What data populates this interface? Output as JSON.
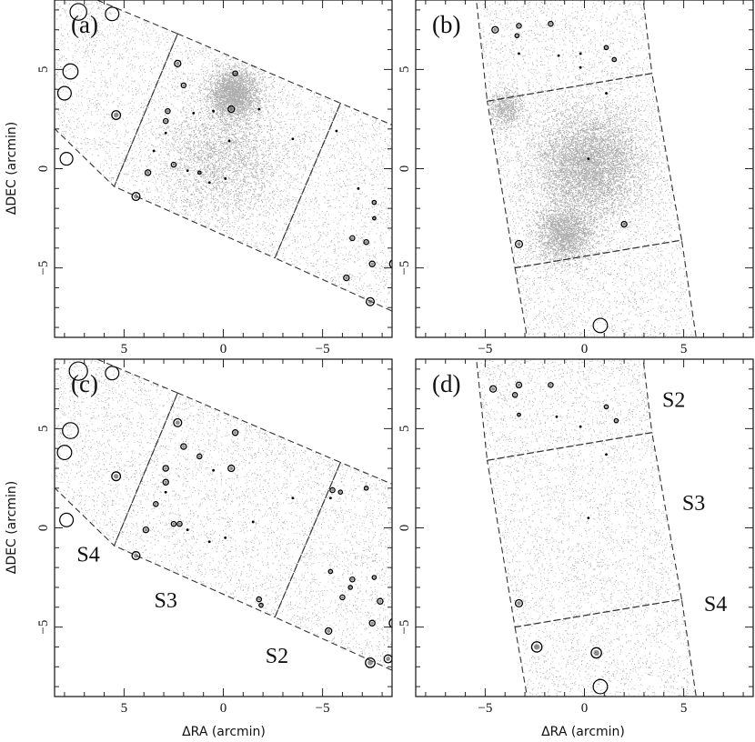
{
  "figure": {
    "x_axis_label": "ΔRA (arcmin)",
    "y_axis_label": "ΔDEC (arcmin)"
  },
  "chart_data": [
    {
      "type": "scatter",
      "panel_label": "(a)",
      "xlabel": "",
      "ylabel": "ΔDEC (arcmin)",
      "xlim": [
        8.5,
        -8.5
      ],
      "ylim": [
        -8.5,
        8.5
      ],
      "x_ticks": [
        -5,
        0,
        5
      ],
      "y_ticks": [
        -5,
        0,
        5
      ],
      "fields": [
        {
          "corners": [
            [
              -5.9,
              3.3
            ],
            [
              -2.6,
              -4.5
            ],
            [
              -9.0,
              -7.4
            ],
            [
              -9.0,
              2.0
            ]
          ]
        },
        {
          "corners": [
            [
              2.3,
              6.8
            ],
            [
              5.5,
              -0.9
            ],
            [
              -2.6,
              -4.5
            ],
            [
              -5.9,
              3.3
            ]
          ]
        },
        {
          "corners": [
            [
              8.5,
              9.4
            ],
            [
              9.0,
              2.5
            ],
            [
              5.5,
              -0.9
            ],
            [
              2.3,
              6.8
            ]
          ]
        }
      ],
      "diffuse_regions": [
        {
          "center": [
            -0.5,
            3.8
          ],
          "radius": 1.4,
          "peak_density": 1.0
        },
        {
          "center": [
            0.0,
            0.5
          ],
          "radius": 3.6,
          "peak_density": 0.35
        }
      ],
      "sources": [
        {
          "x": 7.3,
          "y": 7.9,
          "r": 0.42
        },
        {
          "x": 5.6,
          "y": 7.8,
          "r": 0.34
        },
        {
          "x": 7.7,
          "y": 4.9,
          "r": 0.38
        },
        {
          "x": 8.0,
          "y": 3.8,
          "r": 0.34
        },
        {
          "x": 7.9,
          "y": 0.5,
          "r": 0.32
        },
        {
          "x": 5.4,
          "y": 2.7,
          "r": 0.22
        },
        {
          "x": 4.4,
          "y": -1.4,
          "r": 0.2
        },
        {
          "x": 2.3,
          "y": 5.3,
          "r": 0.16
        },
        {
          "x": 2.0,
          "y": 4.2,
          "r": 0.12
        },
        {
          "x": 2.8,
          "y": 2.9,
          "r": 0.12
        },
        {
          "x": 2.9,
          "y": 2.4,
          "r": 0.12
        },
        {
          "x": 2.5,
          "y": 0.2,
          "r": 0.12
        },
        {
          "x": 3.8,
          "y": -0.2,
          "r": 0.14
        },
        {
          "x": -0.6,
          "y": 4.8,
          "r": 0.12
        },
        {
          "x": -0.4,
          "y": 3.0,
          "r": 0.16
        },
        {
          "x": 1.2,
          "y": -0.2,
          "r": 0.08
        },
        {
          "x": -7.4,
          "y": -6.7,
          "r": 0.2
        },
        {
          "x": -8.6,
          "y": -4.8,
          "r": 0.22
        },
        {
          "x": -6.2,
          "y": -5.5,
          "r": 0.14
        },
        {
          "x": -7.5,
          "y": -4.8,
          "r": 0.14
        },
        {
          "x": -7.2,
          "y": -3.7,
          "r": 0.12
        },
        {
          "x": -6.5,
          "y": -3.5,
          "r": 0.12
        },
        {
          "x": -7.6,
          "y": -1.7,
          "r": 0.1
        },
        {
          "x": -7.6,
          "y": -2.5,
          "r": 0.08
        },
        {
          "x": 0.5,
          "y": 2.9,
          "r": 0.06
        },
        {
          "x": 0.7,
          "y": -0.7,
          "r": 0.06
        },
        {
          "x": -3.5,
          "y": 1.5,
          "r": 0.06
        },
        {
          "x": -0.3,
          "y": 1.4,
          "r": 0.06
        },
        {
          "x": -1.8,
          "y": 3.0,
          "r": 0.06
        },
        {
          "x": 2.9,
          "y": 1.8,
          "r": 0.06
        },
        {
          "x": 1.5,
          "y": 2.8,
          "r": 0.06
        },
        {
          "x": -0.1,
          "y": -0.5,
          "r": 0.06
        },
        {
          "x": 3.5,
          "y": 0.9,
          "r": 0.06
        },
        {
          "x": 1.8,
          "y": -0.1,
          "r": 0.06
        },
        {
          "x": -5.7,
          "y": 1.9,
          "r": 0.06
        },
        {
          "x": -6.8,
          "y": -1.0,
          "r": 0.06
        }
      ],
      "region_labels": []
    },
    {
      "type": "scatter",
      "panel_label": "(b)",
      "xlabel": "",
      "ylabel": "",
      "xlim": [
        -8.5,
        8.5
      ],
      "ylim": [
        -8.5,
        8.5
      ],
      "x_ticks": [
        -5,
        0,
        5
      ],
      "y_ticks": [
        -5,
        0,
        5
      ],
      "fields": [
        {
          "corners": [
            [
              -5.5,
              9.0
            ],
            [
              2.9,
              9.0
            ],
            [
              3.4,
              4.8
            ],
            [
              -4.9,
              3.4
            ]
          ]
        },
        {
          "corners": [
            [
              -4.9,
              3.4
            ],
            [
              3.4,
              4.8
            ],
            [
              4.9,
              -3.6
            ],
            [
              -3.5,
              -5.0
            ]
          ]
        },
        {
          "corners": [
            [
              -3.5,
              -5.0
            ],
            [
              4.9,
              -3.6
            ],
            [
              5.7,
              -9.0
            ],
            [
              -2.8,
              -9.0
            ]
          ]
        }
      ],
      "diffuse_regions": [
        {
          "center": [
            0.2,
            0.2
          ],
          "radius": 3.2,
          "peak_density": 0.95
        },
        {
          "center": [
            -1.0,
            -3.3
          ],
          "radius": 1.7,
          "peak_density": 0.7
        },
        {
          "center": [
            -4.0,
            3.0
          ],
          "radius": 1.0,
          "peak_density": 0.35
        }
      ],
      "sources": [
        {
          "x": 0.8,
          "y": -7.9,
          "r": 0.36
        },
        {
          "x": -3.3,
          "y": -3.8,
          "r": 0.18
        },
        {
          "x": 2.0,
          "y": -2.8,
          "r": 0.14
        },
        {
          "x": -4.5,
          "y": 7.0,
          "r": 0.16
        },
        {
          "x": -3.3,
          "y": 7.2,
          "r": 0.12
        },
        {
          "x": -1.7,
          "y": 7.3,
          "r": 0.12
        },
        {
          "x": -3.4,
          "y": 6.7,
          "r": 0.1
        },
        {
          "x": 1.1,
          "y": 6.1,
          "r": 0.1
        },
        {
          "x": 1.5,
          "y": 5.5,
          "r": 0.1
        },
        {
          "x": -0.2,
          "y": 5.8,
          "r": 0.06
        },
        {
          "x": -3.3,
          "y": 5.8,
          "r": 0.06
        },
        {
          "x": -1.3,
          "y": 5.7,
          "r": 0.06
        },
        {
          "x": -0.2,
          "y": 5.1,
          "r": 0.06
        },
        {
          "x": 1.1,
          "y": 3.8,
          "r": 0.06
        },
        {
          "x": 0.2,
          "y": 0.5,
          "r": 0.06
        }
      ],
      "region_labels": []
    },
    {
      "type": "scatter",
      "panel_label": "(c)",
      "xlabel": "ΔRA (arcmin)",
      "ylabel": "ΔDEC (arcmin)",
      "xlim": [
        8.5,
        -8.5
      ],
      "ylim": [
        -8.5,
        8.5
      ],
      "x_ticks": [
        -5,
        0,
        5
      ],
      "y_ticks": [
        -5,
        0,
        5
      ],
      "fields": [
        {
          "corners": [
            [
              -5.9,
              3.3
            ],
            [
              -2.6,
              -4.5
            ],
            [
              -9.0,
              -7.4
            ],
            [
              -9.0,
              2.0
            ]
          ]
        },
        {
          "corners": [
            [
              2.3,
              6.8
            ],
            [
              5.5,
              -0.9
            ],
            [
              -2.6,
              -4.5
            ],
            [
              -5.9,
              3.3
            ]
          ]
        },
        {
          "corners": [
            [
              8.5,
              9.4
            ],
            [
              9.0,
              2.5
            ],
            [
              5.5,
              -0.9
            ],
            [
              2.3,
              6.8
            ]
          ]
        }
      ],
      "diffuse_regions": [],
      "sources": [
        {
          "x": 7.3,
          "y": 7.9,
          "r": 0.46
        },
        {
          "x": 5.6,
          "y": 7.8,
          "r": 0.34
        },
        {
          "x": 7.7,
          "y": 4.9,
          "r": 0.4
        },
        {
          "x": 8.0,
          "y": 3.8,
          "r": 0.36
        },
        {
          "x": 7.9,
          "y": 0.4,
          "r": 0.34
        },
        {
          "x": 5.4,
          "y": 2.6,
          "r": 0.22
        },
        {
          "x": 4.4,
          "y": -1.4,
          "r": 0.2
        },
        {
          "x": 2.3,
          "y": 5.3,
          "r": 0.2
        },
        {
          "x": 2.0,
          "y": 4.1,
          "r": 0.14
        },
        {
          "x": 2.9,
          "y": 3.0,
          "r": 0.14
        },
        {
          "x": 2.9,
          "y": 2.3,
          "r": 0.14
        },
        {
          "x": 2.2,
          "y": 0.2,
          "r": 0.12
        },
        {
          "x": 2.5,
          "y": 0.2,
          "r": 0.12
        },
        {
          "x": 3.4,
          "y": 1.2,
          "r": 0.12
        },
        {
          "x": 3.9,
          "y": -0.1,
          "r": 0.14
        },
        {
          "x": 1.2,
          "y": 3.6,
          "r": 0.12
        },
        {
          "x": -0.6,
          "y": 4.8,
          "r": 0.14
        },
        {
          "x": -0.4,
          "y": 3.0,
          "r": 0.16
        },
        {
          "x": -7.4,
          "y": -6.8,
          "r": 0.24
        },
        {
          "x": -8.6,
          "y": -4.8,
          "r": 0.24
        },
        {
          "x": -8.3,
          "y": -6.6,
          "r": 0.2
        },
        {
          "x": -5.3,
          "y": -5.2,
          "r": 0.16
        },
        {
          "x": -7.5,
          "y": -4.8,
          "r": 0.14
        },
        {
          "x": -7.9,
          "y": -3.7,
          "r": 0.14
        },
        {
          "x": -6.0,
          "y": -3.5,
          "r": 0.12
        },
        {
          "x": -6.5,
          "y": -2.6,
          "r": 0.12
        },
        {
          "x": -5.4,
          "y": -2.2,
          "r": 0.1
        },
        {
          "x": -6.4,
          "y": -3.0,
          "r": 0.1
        },
        {
          "x": -7.6,
          "y": -2.5,
          "r": 0.1
        },
        {
          "x": -1.8,
          "y": -3.6,
          "r": 0.12
        },
        {
          "x": -1.9,
          "y": -3.9,
          "r": 0.1
        },
        {
          "x": -5.5,
          "y": 1.9,
          "r": 0.12
        },
        {
          "x": -5.9,
          "y": 1.8,
          "r": 0.1
        },
        {
          "x": -7.2,
          "y": 2.0,
          "r": 0.1
        },
        {
          "x": -5.4,
          "y": 1.5,
          "r": 0.06
        },
        {
          "x": 0.5,
          "y": 2.9,
          "r": 0.06
        },
        {
          "x": 0.7,
          "y": -0.7,
          "r": 0.06
        },
        {
          "x": -3.5,
          "y": 1.5,
          "r": 0.06
        },
        {
          "x": -0.1,
          "y": -0.5,
          "r": 0.06
        },
        {
          "x": 1.8,
          "y": -0.1,
          "r": 0.06
        },
        {
          "x": -1.5,
          "y": 0.3,
          "r": 0.06
        },
        {
          "x": 2.9,
          "y": 1.8,
          "r": 0.06
        }
      ],
      "region_labels": [
        {
          "text": "S4",
          "x": 6.8,
          "y": -1.7
        },
        {
          "text": "S3",
          "x": 2.9,
          "y": -4.0
        },
        {
          "text": "S2",
          "x": -2.7,
          "y": -6.8
        }
      ]
    },
    {
      "type": "scatter",
      "panel_label": "(d)",
      "xlabel": "ΔRA (arcmin)",
      "ylabel": "",
      "xlim": [
        -8.5,
        8.5
      ],
      "ylim": [
        -8.5,
        8.5
      ],
      "x_ticks": [
        -5,
        0,
        5
      ],
      "y_ticks": [
        -5,
        0,
        5
      ],
      "fields": [
        {
          "corners": [
            [
              -5.5,
              9.0
            ],
            [
              2.9,
              9.0
            ],
            [
              3.4,
              4.8
            ],
            [
              -4.9,
              3.4
            ]
          ]
        },
        {
          "corners": [
            [
              -4.9,
              3.4
            ],
            [
              3.4,
              4.8
            ],
            [
              4.9,
              -3.6
            ],
            [
              -3.5,
              -5.0
            ]
          ]
        },
        {
          "corners": [
            [
              -3.5,
              -5.0
            ],
            [
              4.9,
              -3.6
            ],
            [
              5.7,
              -9.0
            ],
            [
              -2.8,
              -9.0
            ]
          ]
        }
      ],
      "diffuse_regions": [],
      "sources": [
        {
          "x": 0.8,
          "y": -8.0,
          "r": 0.36
        },
        {
          "x": -2.4,
          "y": -6.0,
          "r": 0.26
        },
        {
          "x": 0.6,
          "y": -6.3,
          "r": 0.26
        },
        {
          "x": -3.3,
          "y": -3.8,
          "r": 0.18
        },
        {
          "x": -4.6,
          "y": 7.0,
          "r": 0.16
        },
        {
          "x": -3.3,
          "y": 7.2,
          "r": 0.14
        },
        {
          "x": -1.7,
          "y": 7.2,
          "r": 0.12
        },
        {
          "x": -3.5,
          "y": 6.7,
          "r": 0.12
        },
        {
          "x": 1.1,
          "y": 6.1,
          "r": 0.1
        },
        {
          "x": 1.6,
          "y": 5.4,
          "r": 0.1
        },
        {
          "x": -3.3,
          "y": 5.7,
          "r": 0.08
        },
        {
          "x": -1.4,
          "y": 5.6,
          "r": 0.06
        },
        {
          "x": -0.2,
          "y": 5.1,
          "r": 0.06
        },
        {
          "x": 1.1,
          "y": 3.7,
          "r": 0.06
        },
        {
          "x": 0.2,
          "y": 0.5,
          "r": 0.06
        }
      ],
      "region_labels": [
        {
          "text": "S2",
          "x": 4.5,
          "y": 6.1
        },
        {
          "text": "S3",
          "x": 5.5,
          "y": 0.9
        },
        {
          "text": "S4",
          "x": 6.6,
          "y": -4.2
        }
      ]
    }
  ]
}
